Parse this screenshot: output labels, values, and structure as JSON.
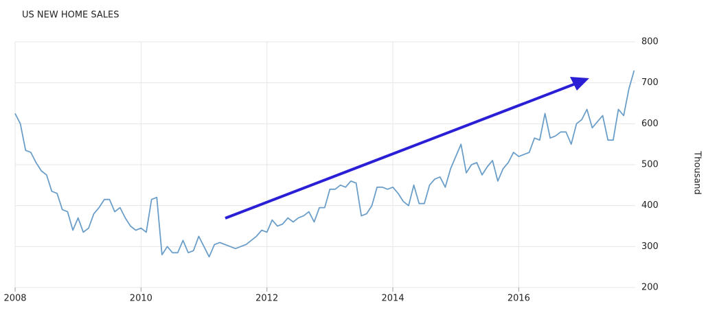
{
  "chart_data": {
    "type": "line",
    "title": "US NEW HOME SALES",
    "y_label": "Thousand",
    "x": [
      2008,
      2008.083,
      2008.167,
      2008.25,
      2008.333,
      2008.417,
      2008.5,
      2008.583,
      2008.667,
      2008.75,
      2008.833,
      2008.917,
      2009,
      2009.083,
      2009.167,
      2009.25,
      2009.333,
      2009.417,
      2009.5,
      2009.583,
      2009.667,
      2009.75,
      2009.833,
      2009.917,
      2010,
      2010.083,
      2010.167,
      2010.25,
      2010.333,
      2010.417,
      2010.5,
      2010.583,
      2010.667,
      2010.75,
      2010.833,
      2010.917,
      2011,
      2011.083,
      2011.167,
      2011.25,
      2011.333,
      2011.417,
      2011.5,
      2011.583,
      2011.667,
      2011.75,
      2011.833,
      2011.917,
      2012,
      2012.083,
      2012.167,
      2012.25,
      2012.333,
      2012.417,
      2012.5,
      2012.583,
      2012.667,
      2012.75,
      2012.833,
      2012.917,
      2013,
      2013.083,
      2013.167,
      2013.25,
      2013.333,
      2013.417,
      2013.5,
      2013.583,
      2013.667,
      2013.75,
      2013.833,
      2013.917,
      2014,
      2014.083,
      2014.167,
      2014.25,
      2014.333,
      2014.417,
      2014.5,
      2014.583,
      2014.667,
      2014.75,
      2014.833,
      2014.917,
      2015,
      2015.083,
      2015.167,
      2015.25,
      2015.333,
      2015.417,
      2015.5,
      2015.583,
      2015.667,
      2015.75,
      2015.833,
      2015.917,
      2016,
      2016.083,
      2016.167,
      2016.25,
      2016.333,
      2016.417,
      2016.5,
      2016.583,
      2016.667,
      2016.75,
      2016.833,
      2016.917,
      2017,
      2017.083,
      2017.167,
      2017.25,
      2017.333,
      2017.417,
      2017.5,
      2017.583,
      2017.667,
      2017.75,
      2017.833
    ],
    "series": [
      {
        "name": "US New Home Sales",
        "color": "#6a9ec9",
        "values": [
          625,
          600,
          535,
          530,
          505,
          485,
          475,
          435,
          430,
          390,
          385,
          340,
          370,
          335,
          345,
          380,
          395,
          415,
          415,
          385,
          395,
          370,
          350,
          340,
          345,
          335,
          415,
          420,
          280,
          300,
          285,
          285,
          315,
          285,
          290,
          325,
          300,
          275,
          305,
          310,
          305,
          300,
          295,
          300,
          305,
          315,
          325,
          340,
          335,
          365,
          350,
          355,
          370,
          360,
          370,
          375,
          385,
          360,
          395,
          395,
          440,
          440,
          450,
          445,
          460,
          455,
          375,
          380,
          400,
          445,
          445,
          440,
          445,
          430,
          410,
          400,
          450,
          405,
          405,
          450,
          465,
          470,
          445,
          490,
          520,
          550,
          480,
          500,
          505,
          475,
          495,
          510,
          460,
          490,
          505,
          530,
          520,
          525,
          530,
          565,
          560,
          625,
          565,
          570,
          580,
          580,
          550,
          600,
          610,
          635,
          590,
          605,
          620,
          560,
          560,
          635,
          620,
          685,
          730
        ]
      }
    ],
    "xlim": [
      2008,
      2017.85
    ],
    "xticks": [
      2008,
      2010,
      2012,
      2014,
      2016
    ],
    "ylim": [
      200,
      800
    ],
    "yticks": [
      200,
      300,
      400,
      500,
      600,
      700,
      800
    ],
    "grid": true
  }
}
